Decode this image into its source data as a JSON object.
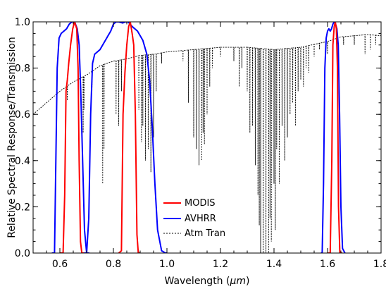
{
  "chart_data": {
    "type": "line",
    "title": "",
    "xlabel_prefix": "Wavelength (",
    "xlabel_unit": "μm",
    "xlabel_suffix": ")",
    "ylabel": "Relative Spectral Response/Transmission",
    "xlim": [
      0.5,
      1.8
    ],
    "ylim": [
      0.0,
      1.0
    ],
    "x_ticks": [
      0.6,
      0.8,
      1.0,
      1.2,
      1.4,
      1.6,
      1.8
    ],
    "x_tick_labels": [
      "0.6",
      "0.8",
      "1.0",
      "1.2",
      "1.4",
      "1.6",
      "1.8"
    ],
    "y_ticks": [
      0.0,
      0.2,
      0.4,
      0.6,
      0.8,
      1.0
    ],
    "y_tick_labels": [
      "0.0",
      "0.2",
      "0.4",
      "0.6",
      "0.8",
      "1.0"
    ],
    "grid": false,
    "legend_position": "bottom-center",
    "series": [
      {
        "name": "MODIS",
        "color": "#ff0000",
        "dash": "solid",
        "segments": [
          [
            [
              0.6,
              0.0
            ],
            [
              0.612,
              0.0
            ],
            [
              0.618,
              0.25
            ],
            [
              0.623,
              0.7
            ],
            [
              0.628,
              0.75
            ],
            [
              0.633,
              0.82
            ],
            [
              0.64,
              0.9
            ],
            [
              0.648,
              0.97
            ],
            [
              0.655,
              1.0
            ],
            [
              0.663,
              0.97
            ],
            [
              0.668,
              0.8
            ],
            [
              0.672,
              0.4
            ],
            [
              0.677,
              0.05
            ],
            [
              0.682,
              0.0
            ],
            [
              0.69,
              0.0
            ]
          ],
          [
            [
              0.82,
              0.0
            ],
            [
              0.83,
              0.01
            ],
            [
              0.836,
              0.6
            ],
            [
              0.843,
              0.78
            ],
            [
              0.85,
              0.9
            ],
            [
              0.857,
              0.98
            ],
            [
              0.863,
              1.0
            ],
            [
              0.87,
              0.95
            ],
            [
              0.876,
              0.9
            ],
            [
              0.882,
              0.6
            ],
            [
              0.888,
              0.08
            ],
            [
              0.893,
              0.0
            ],
            [
              0.9,
              0.0
            ]
          ],
          [
            [
              1.6,
              0.0
            ],
            [
              1.61,
              0.0
            ],
            [
              1.616,
              0.4
            ],
            [
              1.62,
              0.9
            ],
            [
              1.625,
              0.98
            ],
            [
              1.629,
              1.0
            ],
            [
              1.633,
              0.97
            ],
            [
              1.637,
              0.8
            ],
            [
              1.641,
              0.2
            ],
            [
              1.646,
              0.0
            ],
            [
              1.655,
              0.0
            ]
          ]
        ]
      },
      {
        "name": "AVHRR",
        "color": "#0000ff",
        "dash": "solid",
        "segments": [
          [
            [
              0.57,
              0.0
            ],
            [
              0.58,
              0.0
            ],
            [
              0.585,
              0.4
            ],
            [
              0.59,
              0.8
            ],
            [
              0.597,
              0.93
            ],
            [
              0.605,
              0.95
            ],
            [
              0.615,
              0.96
            ],
            [
              0.625,
              0.97
            ],
            [
              0.635,
              0.99
            ],
            [
              0.645,
              1.0
            ],
            [
              0.655,
              1.0
            ],
            [
              0.665,
              0.97
            ],
            [
              0.672,
              0.9
            ],
            [
              0.678,
              0.7
            ],
            [
              0.685,
              0.4
            ],
            [
              0.692,
              0.1
            ],
            [
              0.7,
              0.0
            ],
            [
              0.71,
              0.0
            ]
          ],
          [
            [
              0.69,
              0.0
            ],
            [
              0.7,
              0.0
            ],
            [
              0.708,
              0.15
            ],
            [
              0.715,
              0.6
            ],
            [
              0.722,
              0.82
            ],
            [
              0.73,
              0.86
            ],
            [
              0.74,
              0.87
            ],
            [
              0.75,
              0.88
            ],
            [
              0.76,
              0.9
            ],
            [
              0.77,
              0.92
            ],
            [
              0.78,
              0.94
            ],
            [
              0.79,
              0.96
            ],
            [
              0.8,
              0.99
            ],
            [
              0.81,
              1.0
            ],
            [
              0.82,
              1.0
            ],
            [
              0.835,
              0.995
            ],
            [
              0.845,
              1.0
            ],
            [
              0.855,
              1.0
            ],
            [
              0.87,
              0.98
            ],
            [
              0.89,
              0.96
            ],
            [
              0.91,
              0.92
            ],
            [
              0.925,
              0.86
            ],
            [
              0.935,
              0.75
            ],
            [
              0.945,
              0.55
            ],
            [
              0.955,
              0.3
            ],
            [
              0.965,
              0.1
            ],
            [
              0.98,
              0.01
            ],
            [
              0.995,
              0.0
            ],
            [
              1.0,
              0.0
            ]
          ],
          [
            [
              1.575,
              0.0
            ],
            [
              1.58,
              0.0
            ],
            [
              1.585,
              0.3
            ],
            [
              1.59,
              0.8
            ],
            [
              1.595,
              0.93
            ],
            [
              1.6,
              0.96
            ],
            [
              1.605,
              0.97
            ],
            [
              1.61,
              0.96
            ],
            [
              1.615,
              0.97
            ],
            [
              1.62,
              0.99
            ],
            [
              1.625,
              1.0
            ],
            [
              1.63,
              0.99
            ],
            [
              1.635,
              0.97
            ],
            [
              1.64,
              0.9
            ],
            [
              1.645,
              0.6
            ],
            [
              1.65,
              0.2
            ],
            [
              1.656,
              0.02
            ],
            [
              1.665,
              0.0
            ]
          ]
        ]
      },
      {
        "name": "Atm Tran",
        "color": "#000000",
        "dash": "dotted",
        "baseline": [
          [
            0.5,
            0.6
          ],
          [
            0.55,
            0.65
          ],
          [
            0.6,
            0.7
          ],
          [
            0.65,
            0.74
          ],
          [
            0.7,
            0.77
          ],
          [
            0.75,
            0.81
          ],
          [
            0.8,
            0.83
          ],
          [
            0.85,
            0.84
          ],
          [
            0.9,
            0.855
          ],
          [
            0.95,
            0.86
          ],
          [
            1.0,
            0.87
          ],
          [
            1.1,
            0.88
          ],
          [
            1.2,
            0.89
          ],
          [
            1.3,
            0.89
          ],
          [
            1.4,
            0.88
          ],
          [
            1.5,
            0.89
          ],
          [
            1.6,
            0.915
          ],
          [
            1.65,
            0.935
          ],
          [
            1.7,
            0.94
          ],
          [
            1.75,
            0.945
          ],
          [
            1.8,
            0.94
          ]
        ],
        "dips": [
          [
            0.628,
            0.66
          ],
          [
            0.687,
            0.52
          ],
          [
            0.69,
            0.62
          ],
          [
            0.72,
            0.7
          ],
          [
            0.76,
            0.3
          ],
          [
            0.765,
            0.45
          ],
          [
            0.81,
            0.6
          ],
          [
            0.82,
            0.55
          ],
          [
            0.83,
            0.7
          ],
          [
            0.895,
            0.62
          ],
          [
            0.905,
            0.48
          ],
          [
            0.91,
            0.55
          ],
          [
            0.92,
            0.4
          ],
          [
            0.93,
            0.45
          ],
          [
            0.94,
            0.35
          ],
          [
            0.95,
            0.5
          ],
          [
            0.96,
            0.7
          ],
          [
            0.98,
            0.82
          ],
          [
            1.06,
            0.83
          ],
          [
            1.08,
            0.65
          ],
          [
            1.1,
            0.5
          ],
          [
            1.11,
            0.45
          ],
          [
            1.12,
            0.38
          ],
          [
            1.13,
            0.4
          ],
          [
            1.135,
            0.52
          ],
          [
            1.14,
            0.47
          ],
          [
            1.15,
            0.6
          ],
          [
            1.16,
            0.72
          ],
          [
            1.17,
            0.8
          ],
          [
            1.2,
            0.85
          ],
          [
            1.25,
            0.83
          ],
          [
            1.27,
            0.72
          ],
          [
            1.28,
            0.8
          ],
          [
            1.3,
            0.7
          ],
          [
            1.31,
            0.52
          ],
          [
            1.32,
            0.55
          ],
          [
            1.33,
            0.38
          ],
          [
            1.34,
            0.25
          ],
          [
            1.345,
            0.12
          ],
          [
            1.35,
            0.0
          ],
          [
            1.36,
            0.0
          ],
          [
            1.37,
            0.0
          ],
          [
            1.38,
            0.0
          ],
          [
            1.385,
            0.15
          ],
          [
            1.39,
            0.05
          ],
          [
            1.4,
            0.3
          ],
          [
            1.405,
            0.1
          ],
          [
            1.41,
            0.45
          ],
          [
            1.42,
            0.3
          ],
          [
            1.43,
            0.55
          ],
          [
            1.44,
            0.4
          ],
          [
            1.45,
            0.5
          ],
          [
            1.46,
            0.6
          ],
          [
            1.47,
            0.65
          ],
          [
            1.48,
            0.55
          ],
          [
            1.49,
            0.7
          ],
          [
            1.5,
            0.75
          ],
          [
            1.51,
            0.72
          ],
          [
            1.52,
            0.8
          ],
          [
            1.53,
            0.78
          ],
          [
            1.55,
            0.85
          ],
          [
            1.57,
            0.88
          ],
          [
            1.6,
            0.86
          ],
          [
            1.66,
            0.9
          ],
          [
            1.7,
            0.9
          ],
          [
            1.74,
            0.86
          ],
          [
            1.76,
            0.88
          ],
          [
            1.78,
            0.9
          ]
        ]
      }
    ]
  }
}
